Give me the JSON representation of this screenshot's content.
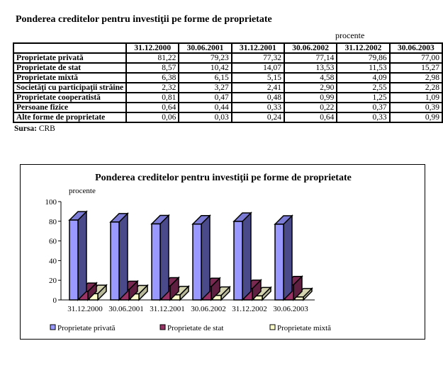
{
  "title": "Ponderea creditelor pentru investiţii pe forme de proprietate",
  "unit": "procente",
  "table": {
    "columns": [
      "31.12.2000",
      "30.06.2001",
      "31.12.2001",
      "30.06.2002",
      "31.12.2002",
      "30.06.2003"
    ],
    "rows": [
      {
        "label": "Proprietate privată",
        "values": [
          "81,22",
          "79,23",
          "77,32",
          "77,14",
          "79,86",
          "77,00"
        ]
      },
      {
        "label": "Proprietate de stat",
        "values": [
          "8,57",
          "10,42",
          "14,07",
          "13,53",
          "11,53",
          "15,27"
        ]
      },
      {
        "label": "Proprietate mixtă",
        "values": [
          "6,38",
          "6,15",
          "5,15",
          "4,58",
          "4,09",
          "2,98"
        ]
      },
      {
        "label": "Societăţi cu participaţii străine",
        "values": [
          "2,32",
          "3,27",
          "2,41",
          "2,90",
          "2,55",
          "2,28"
        ]
      },
      {
        "label": "Proprietate cooperatistă",
        "values": [
          "0,81",
          "0,47",
          "0,48",
          "0,99",
          "1,25",
          "1,09"
        ]
      },
      {
        "label": "Persoane fizice",
        "values": [
          "0,64",
          "0,44",
          "0,33",
          "0,22",
          "0,37",
          "0,39"
        ]
      },
      {
        "label": "Alte forme de proprietate",
        "values": [
          "0,06",
          "0,03",
          "0,24",
          "0,64",
          "0,33",
          "0,99"
        ]
      }
    ]
  },
  "source": {
    "label": "Sursa:",
    "value": "CRB"
  },
  "chart_data": {
    "type": "bar",
    "title": "Ponderea creditelor pentru investiţii pe forme de proprietate",
    "ylabel": "procente",
    "ylim": [
      0,
      100
    ],
    "yticks": [
      0,
      20,
      40,
      60,
      80,
      100
    ],
    "categories": [
      "31.12.2000",
      "30.06.2001",
      "31.12.2001",
      "30.06.2002",
      "31.12.2002",
      "30.06.2003"
    ],
    "series": [
      {
        "name": "Proprietate privată",
        "values": [
          81.22,
          79.23,
          77.32,
          77.14,
          79.86,
          77.0
        ],
        "color": "#9999ff",
        "side": "#4a4a8a",
        "top": "#7b7bd6"
      },
      {
        "name": "Proprietate de stat",
        "values": [
          8.57,
          10.42,
          14.07,
          13.53,
          11.53,
          15.27
        ],
        "color": "#993366",
        "side": "#5e1f40",
        "top": "#7a2952"
      },
      {
        "name": "Proprietate mixtă",
        "values": [
          6.38,
          6.15,
          5.15,
          4.58,
          4.09,
          2.98
        ],
        "color": "#ffffcc",
        "side": "#b8b89a",
        "top": "#d4d4b0"
      }
    ],
    "legend": "bottom"
  }
}
